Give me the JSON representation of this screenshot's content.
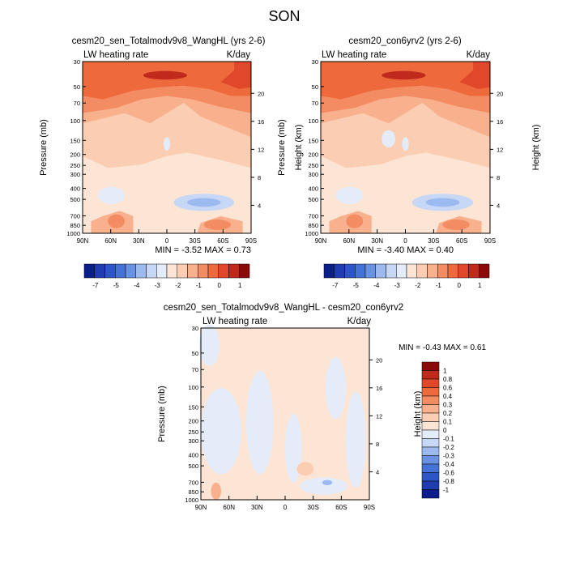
{
  "figure": {
    "title": "SON"
  },
  "chart_data": [
    {
      "type": "heatmap",
      "title": "cesm20_sen_Totalmodv9v8_WangHL (yrs 2-6)",
      "left_label": "LW heating rate",
      "right_label": "K/day",
      "ylabel": "Pressure (mb)",
      "ylabel_right": "Height (km)",
      "x_ticks": [
        "90N",
        "60N",
        "30N",
        "0",
        "30S",
        "60S",
        "90S"
      ],
      "pressure_ticks": [
        "30",
        "50",
        "70",
        "100",
        "150",
        "200",
        "250",
        "300",
        "400",
        "500",
        "700",
        "850",
        "1000"
      ],
      "height_ticks": [
        "20",
        "16",
        "12",
        "8",
        "4"
      ],
      "min_max": "MIN = -3.52   MAX =   0.73",
      "colorbar_labels": [
        "-7",
        "-5",
        "-4",
        "-3",
        "-2",
        "-1",
        "0",
        "1"
      ],
      "xlim": [
        "90N",
        "90S"
      ],
      "ylim_mb": [
        1000,
        30
      ],
      "min": -3.52,
      "max": 0.73
    },
    {
      "type": "heatmap",
      "title": "cesm20_con6yrv2 (yrs 2-6)",
      "left_label": "LW heating rate",
      "right_label": "K/day",
      "ylabel": "Pressure (mb)",
      "ylabel_right": "Height (km)",
      "x_ticks": [
        "90N",
        "60N",
        "30N",
        "0",
        "30S",
        "60S",
        "90S"
      ],
      "pressure_ticks": [
        "30",
        "50",
        "70",
        "100",
        "150",
        "200",
        "250",
        "300",
        "400",
        "500",
        "700",
        "850",
        "1000"
      ],
      "height_ticks": [
        "20",
        "16",
        "12",
        "8",
        "4"
      ],
      "min_max": "MIN = -3.40   MAX =   0.40",
      "colorbar_labels": [
        "-7",
        "-5",
        "-4",
        "-3",
        "-2",
        "-1",
        "0",
        "1"
      ],
      "xlim": [
        "90N",
        "90S"
      ],
      "ylim_mb": [
        1000,
        30
      ],
      "min": -3.4,
      "max": 0.4
    },
    {
      "type": "heatmap",
      "title": "cesm20_sen_Totalmodv9v8_WangHL - cesm20_con6yrv2",
      "left_label": "LW heating rate",
      "right_label": "K/day",
      "ylabel": "Pressure (mb)",
      "ylabel_right": "Height (km)",
      "x_ticks": [
        "90N",
        "60N",
        "30N",
        "0",
        "30S",
        "60S",
        "90S"
      ],
      "pressure_ticks": [
        "30",
        "50",
        "70",
        "100",
        "150",
        "200",
        "250",
        "300",
        "400",
        "500",
        "700",
        "850",
        "1000"
      ],
      "height_ticks": [
        "20",
        "16",
        "12",
        "8",
        "4"
      ],
      "min_max": "MIN = -0.43   MAX =   0.61",
      "colorbar_labels": [
        "1",
        "0.8",
        "0.6",
        "0.4",
        "0.3",
        "0.2",
        "0.1",
        "0",
        "-0.1",
        "-0.2",
        "-0.3",
        "-0.4",
        "-0.6",
        "-0.8",
        "-1"
      ],
      "xlim": [
        "90N",
        "90S"
      ],
      "ylim_mb": [
        1000,
        30
      ],
      "min": -0.43,
      "max": 0.61
    }
  ],
  "colors": {
    "main_scale": [
      "#0a1f8c",
      "#1f3cb0",
      "#2e55c8",
      "#4472d6",
      "#6a92e2",
      "#9cbaef",
      "#c6d8f6",
      "#e4ecfa",
      "#fde5d6",
      "#fbcdb2",
      "#f8b08d",
      "#f38c62",
      "#ee6a3d",
      "#e1482a",
      "#c02a1c",
      "#8a0a0a"
    ],
    "diff_scale": [
      "#0a1f8c",
      "#1f3cb0",
      "#2e55c8",
      "#4472d6",
      "#6a92e2",
      "#9cbaef",
      "#c6d8f6",
      "#e4ecfa",
      "#fde5d6",
      "#fbcdb2",
      "#f8b08d",
      "#f38c62",
      "#ee6a3d",
      "#e1482a",
      "#c02a1c",
      "#8a0a0a"
    ]
  }
}
